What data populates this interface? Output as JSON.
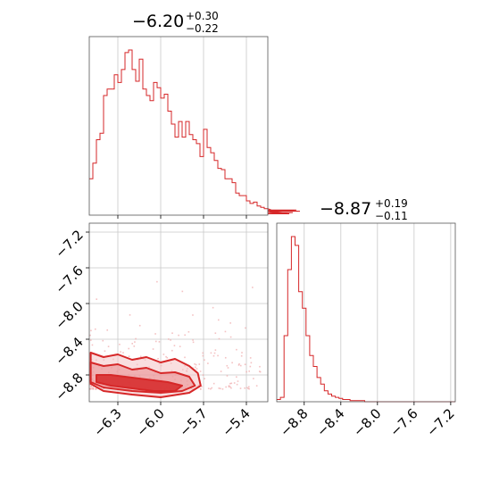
{
  "colors": {
    "accent": "#d62728",
    "fill_light": "#f4c2c4",
    "fill_mid": "#ea8f93",
    "grid": "#c8c8c8"
  },
  "chart_data": [
    {
      "panel": "top-left",
      "type": "histogram",
      "title_main": "−6.20",
      "title_plus": "+0.30",
      "title_minus": "−0.22",
      "xlim": [
        -6.5,
        -5.25
      ],
      "x_ticks": [
        -6.3,
        -6.0,
        -5.7,
        -5.4
      ],
      "bin_start": -6.5,
      "bin_width": 0.025,
      "counts": [
        28,
        40,
        58,
        63,
        92,
        97,
        97,
        108,
        102,
        112,
        125,
        127,
        112,
        103,
        120,
        97,
        92,
        88,
        102,
        98,
        90,
        93,
        80,
        70,
        60,
        72,
        60,
        72,
        62,
        58,
        55,
        45,
        66,
        52,
        48,
        42,
        36,
        35,
        28,
        28,
        25,
        17,
        15,
        15,
        11,
        9,
        10,
        7,
        6,
        5,
        5,
        4,
        3,
        2,
        2,
        1,
        1,
        2,
        4,
        3
      ]
    },
    {
      "panel": "bottom-right",
      "type": "histogram",
      "title_main": "−8.87",
      "title_plus": "+0.19",
      "title_minus": "−0.11",
      "xlim": [
        -9.1,
        -7.15
      ],
      "x_ticks": [
        -8.8,
        -8.4,
        -8.0,
        -7.6,
        -7.2
      ],
      "bin_start": -9.1,
      "bin_width": 0.04,
      "counts": [
        2,
        4,
        60,
        120,
        150,
        142,
        100,
        85,
        60,
        42,
        32,
        22,
        16,
        10,
        7,
        5,
        4,
        3,
        2,
        2,
        1,
        1,
        1,
        1,
        0,
        0,
        0,
        0,
        0,
        0,
        0,
        0,
        0,
        0,
        0,
        0,
        0,
        0,
        0,
        0,
        0,
        0,
        0,
        0,
        0,
        0,
        0,
        0,
        0
      ]
    },
    {
      "panel": "bottom-left",
      "type": "contour",
      "xlim": [
        -6.5,
        -5.25
      ],
      "ylim": [
        -9.1,
        -7.1
      ],
      "x_ticks": [
        -6.3,
        -6.0,
        -5.7,
        -5.4
      ],
      "y_ticks": [
        -7.2,
        -7.6,
        -8.0,
        -8.4,
        -8.8
      ],
      "levels": [
        {
          "level": "outer",
          "points": [
            [
              -6.49,
              -8.55
            ],
            [
              -6.4,
              -8.6
            ],
            [
              -6.3,
              -8.57
            ],
            [
              -6.2,
              -8.63
            ],
            [
              -6.1,
              -8.6
            ],
            [
              -6.0,
              -8.66
            ],
            [
              -5.9,
              -8.62
            ],
            [
              -5.8,
              -8.7
            ],
            [
              -5.74,
              -8.78
            ],
            [
              -5.72,
              -8.92
            ],
            [
              -5.8,
              -9.0
            ],
            [
              -6.0,
              -9.05
            ],
            [
              -6.2,
              -9.02
            ],
            [
              -6.4,
              -8.98
            ],
            [
              -6.49,
              -8.9
            ]
          ]
        },
        {
          "level": "middle",
          "points": [
            [
              -6.49,
              -8.66
            ],
            [
              -6.4,
              -8.7
            ],
            [
              -6.3,
              -8.68
            ],
            [
              -6.2,
              -8.74
            ],
            [
              -6.1,
              -8.72
            ],
            [
              -6.0,
              -8.78
            ],
            [
              -5.9,
              -8.77
            ],
            [
              -5.8,
              -8.82
            ],
            [
              -5.76,
              -8.92
            ],
            [
              -5.85,
              -8.98
            ],
            [
              -6.0,
              -9.0
            ],
            [
              -6.2,
              -8.98
            ],
            [
              -6.4,
              -8.94
            ],
            [
              -6.49,
              -8.88
            ]
          ]
        },
        {
          "level": "inner",
          "points": [
            [
              -6.45,
              -8.8
            ],
            [
              -6.35,
              -8.8
            ],
            [
              -6.25,
              -8.82
            ],
            [
              -6.15,
              -8.84
            ],
            [
              -6.05,
              -8.86
            ],
            [
              -5.95,
              -8.88
            ],
            [
              -5.85,
              -8.92
            ],
            [
              -5.9,
              -8.98
            ],
            [
              -6.05,
              -8.98
            ],
            [
              -6.2,
              -8.95
            ],
            [
              -6.35,
              -8.92
            ],
            [
              -6.45,
              -8.88
            ]
          ]
        }
      ]
    }
  ]
}
